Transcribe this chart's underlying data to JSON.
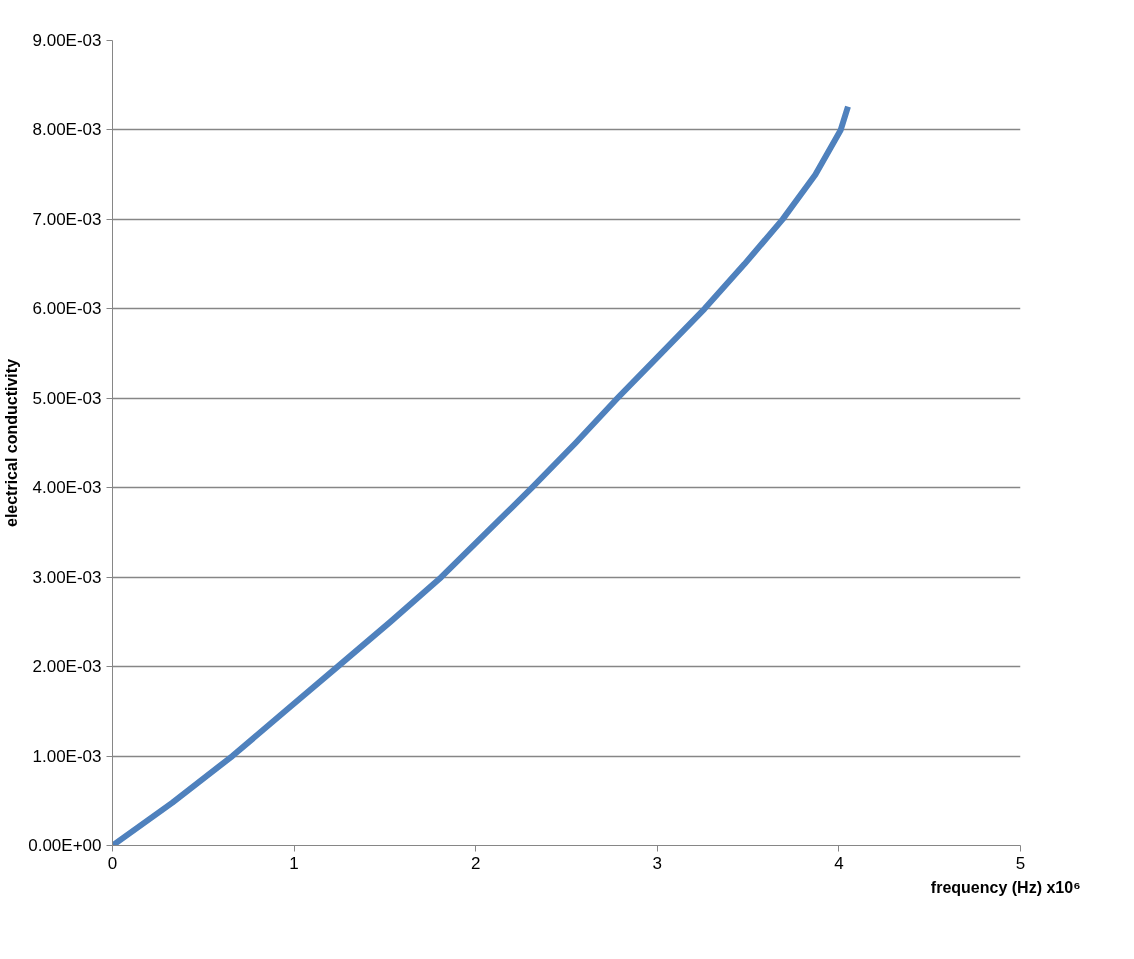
{
  "chart_data": {
    "type": "line",
    "xlabel": "frequency (Hz) x10⁶",
    "ylabel": "electrical conductivity",
    "x": [
      0,
      0.33,
      0.66,
      0.95,
      1.24,
      1.53,
      1.81,
      2.06,
      2.31,
      2.55,
      2.78,
      3.02,
      3.26,
      3.48,
      3.69,
      3.87,
      4.01,
      4.05
    ],
    "series": [
      {
        "color": "#4f81bd",
        "values": [
          0,
          0.00048,
          0.001,
          0.0015,
          0.002,
          0.0025,
          0.003,
          0.0035,
          0.004,
          0.0045,
          0.005,
          0.0055,
          0.006,
          0.0065,
          0.007,
          0.0075,
          0.008,
          0.00826
        ]
      }
    ],
    "xlim": [
      0,
      5
    ],
    "xticks": [
      0,
      1,
      2,
      3,
      4,
      5
    ],
    "ylim": [
      0,
      0.009
    ],
    "yticks": [
      {
        "value": 0,
        "label": "0.00E+00"
      },
      {
        "value": 0.001,
        "label": "1.00E-03"
      },
      {
        "value": 0.002,
        "label": "2.00E-03"
      },
      {
        "value": 0.003,
        "label": "3.00E-03"
      },
      {
        "value": 0.004,
        "label": "4.00E-03"
      },
      {
        "value": 0.005,
        "label": "5.00E-03"
      },
      {
        "value": 0.006,
        "label": "6.00E-03"
      },
      {
        "value": 0.007,
        "label": "7.00E-03"
      },
      {
        "value": 0.008,
        "label": "8.00E-03"
      },
      {
        "value": 0.009,
        "label": "9.00E-03"
      }
    ],
    "grid": "y",
    "marker": "none",
    "line_style": "solid"
  }
}
